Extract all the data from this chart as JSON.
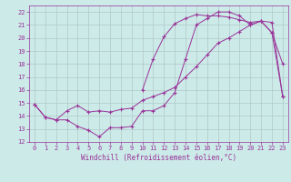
{
  "xlabel": "Windchill (Refroidissement éolien,°C)",
  "xlim": [
    -0.5,
    23.5
  ],
  "ylim": [
    12,
    22.5
  ],
  "xticks": [
    0,
    1,
    2,
    3,
    4,
    5,
    6,
    7,
    8,
    9,
    10,
    11,
    12,
    13,
    14,
    15,
    16,
    17,
    18,
    19,
    20,
    21,
    22,
    23
  ],
  "yticks": [
    12,
    13,
    14,
    15,
    16,
    17,
    18,
    19,
    20,
    21,
    22
  ],
  "background_color": "#cceae8",
  "grid_color": "#b0c8c8",
  "line_color": "#993399",
  "line1_x": [
    0,
    1,
    2,
    3,
    4,
    5,
    6,
    7,
    8,
    9,
    10,
    11,
    12,
    13,
    14,
    15,
    16,
    17,
    18,
    19,
    20,
    21,
    22,
    23
  ],
  "line1_y": [
    14.9,
    13.9,
    13.7,
    13.7,
    13.2,
    12.9,
    12.4,
    13.1,
    13.1,
    13.2,
    14.4,
    14.4,
    14.8,
    15.8,
    18.4,
    21.0,
    21.5,
    22.0,
    22.0,
    21.7,
    21.0,
    21.3,
    20.4,
    18.0
  ],
  "line2_x": [
    0,
    1,
    2,
    3,
    4,
    5,
    6,
    7,
    8,
    9,
    10,
    11,
    12,
    13,
    14,
    15,
    16,
    17,
    18,
    19,
    20,
    21,
    22,
    23
  ],
  "line2_y": [
    14.9,
    13.9,
    13.7,
    14.4,
    14.8,
    14.3,
    14.4,
    14.3,
    14.5,
    14.6,
    15.2,
    15.5,
    15.8,
    16.2,
    17.0,
    17.8,
    18.7,
    19.6,
    20.0,
    20.5,
    21.0,
    21.3,
    21.2,
    15.5
  ],
  "line3_x": [
    10,
    11,
    12,
    13,
    14,
    15,
    16,
    17,
    18,
    19,
    20,
    21,
    22,
    23
  ],
  "line3_y": [
    16.0,
    18.4,
    20.1,
    21.1,
    21.5,
    21.8,
    21.7,
    21.7,
    21.6,
    21.4,
    21.2,
    21.3,
    20.4,
    15.5
  ],
  "tick_fontsize": 5,
  "xlabel_fontsize": 5.5
}
